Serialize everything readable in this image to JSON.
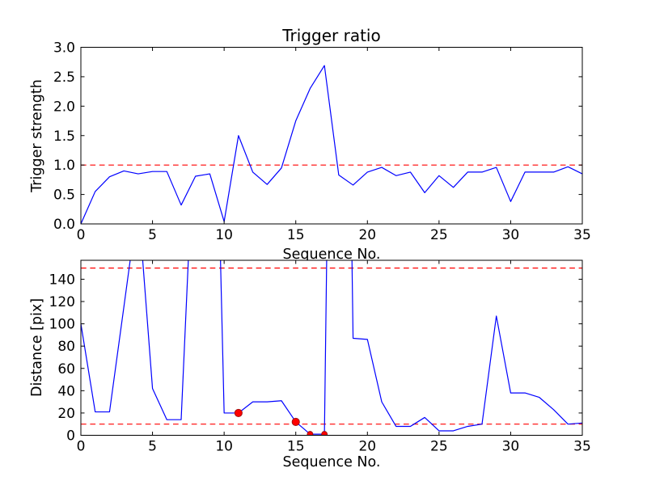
{
  "figure": {
    "background": "#ffffff"
  },
  "colors": {
    "line": "#0000ff",
    "threshold": "#ff0000",
    "frame": "#000000",
    "marker_fill": "#ff0000",
    "marker_edge": "#991111",
    "text": "#000000"
  },
  "chart_data": [
    {
      "type": "line",
      "title": "Trigger ratio",
      "xlabel": "Sequence No.",
      "ylabel": "Trigger strength",
      "xlim": [
        0,
        35
      ],
      "ylim": [
        0,
        3
      ],
      "grid": false,
      "legend": "none",
      "xtick_labels": [
        "0",
        "5",
        "10",
        "15",
        "20",
        "25",
        "30",
        "35"
      ],
      "ytick_labels": [
        "0.0",
        "0.5",
        "1.0",
        "1.5",
        "2.0",
        "2.5",
        "3.0"
      ],
      "x": [
        0,
        1,
        2,
        3,
        4,
        5,
        6,
        7,
        8,
        9,
        10,
        11,
        12,
        13,
        14,
        15,
        16,
        17,
        18,
        19,
        20,
        21,
        22,
        23,
        24,
        25,
        26,
        27,
        28,
        29,
        30,
        31,
        32,
        33,
        34,
        35
      ],
      "values": [
        0.0,
        0.55,
        0.8,
        0.9,
        0.85,
        0.89,
        0.89,
        0.32,
        0.81,
        0.85,
        0.04,
        1.5,
        0.88,
        0.67,
        0.95,
        1.75,
        2.3,
        2.69,
        0.83,
        0.66,
        0.88,
        0.96,
        0.82,
        0.88,
        0.53,
        0.82,
        0.62,
        0.88,
        0.88,
        0.96,
        0.38,
        0.88,
        0.88,
        0.88,
        0.97,
        0.85
      ],
      "thresholds": [
        1.0
      ],
      "markers": []
    },
    {
      "type": "line",
      "title": "",
      "xlabel": "Sequence No.",
      "ylabel": "Distance [pix]",
      "xlim": [
        0,
        35
      ],
      "ylim": [
        0,
        157
      ],
      "grid": false,
      "legend": "none",
      "xtick_labels": [
        "0",
        "5",
        "10",
        "15",
        "20",
        "25",
        "30",
        "35"
      ],
      "ytick_labels": [
        "0",
        "20",
        "40",
        "60",
        "80",
        "100",
        "120",
        "140"
      ],
      "x": [
        0,
        1,
        2,
        3,
        4,
        5,
        6,
        7,
        8,
        9,
        10,
        11,
        12,
        13,
        14,
        15,
        16,
        17,
        18,
        19,
        20,
        21,
        22,
        23,
        24,
        25,
        26,
        27,
        28,
        29,
        30,
        31,
        32,
        33,
        34,
        35
      ],
      "values": [
        100,
        21,
        21,
        115,
        210,
        42,
        14,
        14,
        300,
        560,
        20,
        20,
        30,
        30,
        31,
        12,
        1,
        1,
        1000,
        87,
        86,
        30,
        8,
        8,
        16,
        4,
        4,
        8,
        10,
        107,
        38,
        38,
        34,
        23,
        10,
        11
      ],
      "thresholds": [
        150,
        10
      ],
      "markers": [
        {
          "x": 11,
          "y": 20,
          "size": 4.6
        },
        {
          "x": 15,
          "y": 12,
          "size": 4.6
        },
        {
          "x": 16,
          "y": 1,
          "size": 3.5
        },
        {
          "x": 17,
          "y": 1,
          "size": 3.5
        }
      ]
    }
  ]
}
